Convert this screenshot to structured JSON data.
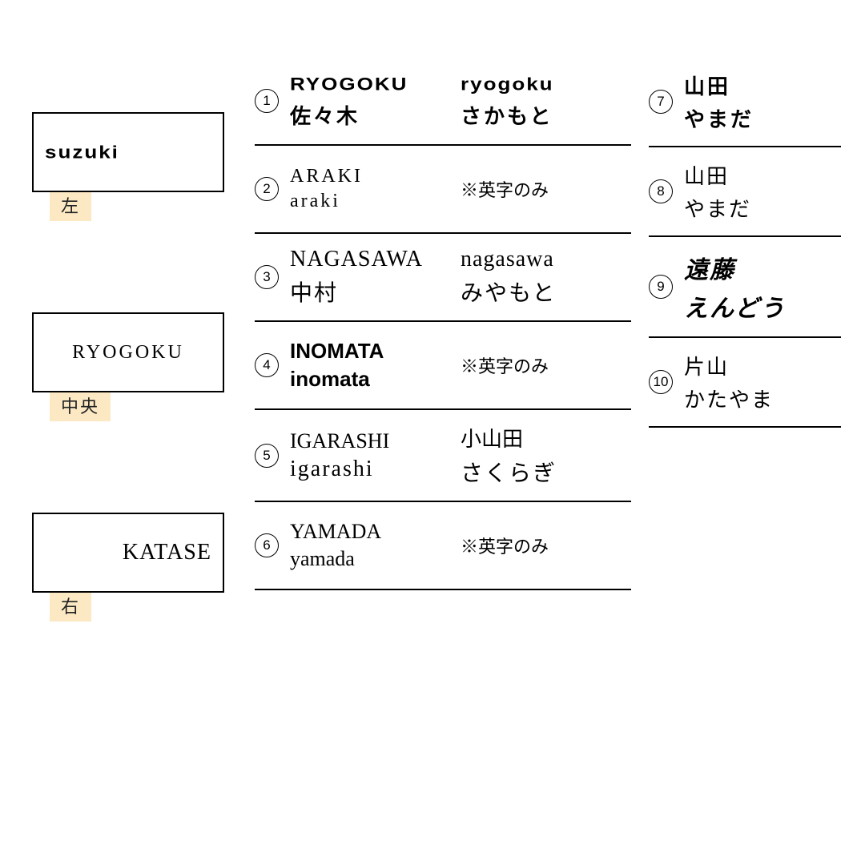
{
  "left_samples": [
    {
      "text": "suzuki",
      "caption": "左",
      "align": "left",
      "font_class": "font-blocky"
    },
    {
      "text": "RYOGOKU",
      "caption": "中央",
      "align": "center",
      "font_class": "font-hand"
    },
    {
      "text": "KATASE",
      "caption": "右",
      "align": "right",
      "font_class": "font-serif"
    }
  ],
  "mid_rows": [
    {
      "num": "1",
      "col1": [
        "RYOGOKU",
        "佐々木"
      ],
      "col2": [
        "ryogoku",
        "さかもと"
      ],
      "font_class": "font-blocky",
      "jp_class": "font-jp-block",
      "note": ""
    },
    {
      "num": "2",
      "col1": [
        "ARAKI",
        "araki"
      ],
      "col2": [],
      "font_class": "font-hand",
      "jp_class": "",
      "note": "※英字のみ"
    },
    {
      "num": "3",
      "col1": [
        "NAGASAWA",
        "中村"
      ],
      "col2": [
        "nagasawa",
        "みやもと"
      ],
      "font_class": "font-serif",
      "jp_class": "font-jp-serif",
      "note": ""
    },
    {
      "num": "4",
      "col1": [
        "INOMATA",
        "inomata"
      ],
      "col2": [],
      "font_class": "font-bold-sans",
      "jp_class": "",
      "note": "※英字のみ"
    },
    {
      "num": "5",
      "col1": [
        "IGARASHI",
        "igarashi"
      ],
      "col2": [
        "小山田",
        "さくらぎ"
      ],
      "font_class": "font-thin-serif",
      "jp_class": "font-jp-serif",
      "note": ""
    },
    {
      "num": "6",
      "col1": [
        "YAMADA",
        "yamada"
      ],
      "col2": [],
      "font_class": "font-thin-serif",
      "jp_class": "",
      "note": "※英字のみ"
    }
  ],
  "right_rows": [
    {
      "num": "7",
      "lines": [
        "山田",
        "やまだ"
      ],
      "jp_class": "font-jp-block"
    },
    {
      "num": "8",
      "lines": [
        "山田",
        "やまだ"
      ],
      "jp_class": "font-jp-hand"
    },
    {
      "num": "9",
      "lines": [
        "遠藤",
        "えんどう"
      ],
      "jp_class": "font-jp-brush"
    },
    {
      "num": "10",
      "lines": [
        "片山",
        "かたやま"
      ],
      "jp_class": "font-jp-sans"
    }
  ],
  "colors": {
    "caption_bg": "#fce9c4",
    "border": "#000000",
    "bg": "#ffffff"
  }
}
